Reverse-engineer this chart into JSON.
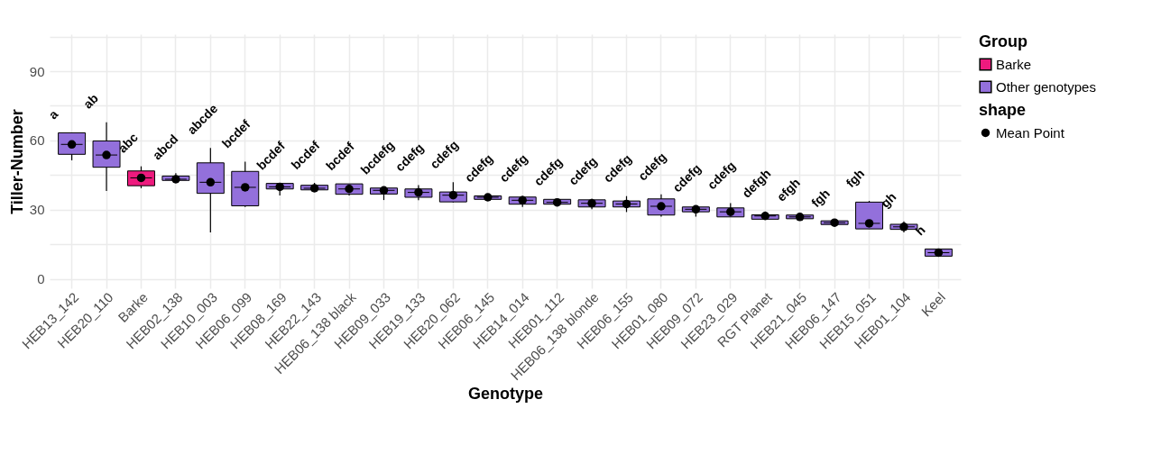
{
  "chart_data": {
    "type": "box",
    "xlabel": "Genotype",
    "ylabel": "Tiller-Number",
    "legend_title": "Group",
    "legend": "right",
    "grid": true,
    "marker": "circle",
    "categories": [
      "HEB13_142",
      "HEB20_110",
      "Barke",
      "HEB02_138",
      "HEB10_003",
      "HEB06_099",
      "HEB08_169",
      "HEB22_143",
      "HEB06_138 black",
      "HEB09_033",
      "HEB19_133",
      "HEB20_062",
      "HEB06_145",
      "HEB14_014",
      "HEB01_112",
      "HEB06_138 blonde",
      "HEB06_155",
      "HEB01_080",
      "HEB09_072",
      "HEB23_029",
      "RGT Planet",
      "HEB21_045",
      "HEB06_147",
      "HEB15_051",
      "HEB01_104",
      "Keel"
    ],
    "ylim": [
      -4,
      106
    ],
    "yticks": [
      0,
      {
        "value": 15,
        "label": null
      },
      30,
      {
        "value": 45,
        "label": null
      },
      60,
      {
        "value": 75,
        "label": null
      },
      90,
      {
        "value": 105,
        "label": null
      }
    ],
    "series": [
      {
        "name": "Barke",
        "color": "#ee1a7e",
        "boxes": [
          null,
          null,
          {
            "low": 39.3,
            "q1": 40.4,
            "median": 43.8,
            "q3": 46.8,
            "high": 48.8
          },
          null,
          null,
          null,
          null,
          null,
          null,
          null,
          null,
          null,
          null,
          null,
          null,
          null,
          null,
          null,
          null,
          null,
          null,
          null,
          null,
          null,
          null,
          null
        ]
      },
      {
        "name": "Other genotypes",
        "color": "#9370db",
        "boxes": [
          {
            "low": 51.4,
            "q1": 54,
            "median": 58.3,
            "q3": 63.3,
            "high": 63.3
          },
          {
            "low": 38.1,
            "q1": 48.4,
            "median": 53.7,
            "q3": 59.8,
            "high": 67.9
          },
          null,
          {
            "low": 42.7,
            "q1": 42.7,
            "median": 43.2,
            "q3": 44.6,
            "high": 45.8
          },
          {
            "low": 20.2,
            "q1": 37.1,
            "median": 41.9,
            "q3": 50.3,
            "high": 56.8
          },
          {
            "low": 31.2,
            "q1": 31.7,
            "median": 39.7,
            "q3": 46.6,
            "high": 50.8
          },
          {
            "low": 36.2,
            "q1": 39,
            "median": 39.9,
            "q3": 41.4,
            "high": 41.4
          },
          {
            "low": 38.2,
            "q1": 38.6,
            "median": 39.3,
            "q3": 40.6,
            "high": 41.6
          },
          {
            "low": 36.2,
            "q1": 36.7,
            "median": 39,
            "q3": 41.2,
            "high": 41.2
          },
          {
            "low": 34.2,
            "q1": 36.8,
            "median": 38.4,
            "q3": 39.4,
            "high": 39.4
          },
          {
            "low": 34.1,
            "q1": 35.4,
            "median": 37.5,
            "q3": 39,
            "high": 40.7
          },
          {
            "low": 33.2,
            "q1": 33.4,
            "median": 36.3,
            "q3": 37.7,
            "high": 41.9
          },
          {
            "low": 34.5,
            "q1": 34.5,
            "median": 35.4,
            "q3": 36,
            "high": 36
          },
          {
            "low": 31.2,
            "q1": 32.4,
            "median": 34.1,
            "q3": 35.5,
            "high": 36
          },
          {
            "low": 31.7,
            "q1": 32.4,
            "median": 33.2,
            "q3": 34.5,
            "high": 34.5
          },
          {
            "low": 30.2,
            "q1": 31.2,
            "median": 32.8,
            "q3": 34.3,
            "high": 34.8
          },
          {
            "low": 29,
            "q1": 31.2,
            "median": 32.5,
            "q3": 33.8,
            "high": 35.9
          },
          {
            "low": 27,
            "q1": 27.7,
            "median": 31.5,
            "q3": 34.7,
            "high": 36.7
          },
          {
            "low": 27,
            "q1": 29.1,
            "median": 30.2,
            "q3": 31.2,
            "high": 31.7
          },
          {
            "low": 26.9,
            "q1": 26.9,
            "median": 29.1,
            "q3": 30.8,
            "high": 32.9
          },
          {
            "low": 25.9,
            "q1": 25.9,
            "median": 27.3,
            "q3": 27.8,
            "high": 29.3
          },
          {
            "low": 26.1,
            "q1": 26.1,
            "median": 26.9,
            "q3": 27.7,
            "high": 27.7
          },
          {
            "low": 23.6,
            "q1": 23.6,
            "median": 24.4,
            "q3": 25.2,
            "high": 25.2
          },
          {
            "low": 21.7,
            "q1": 21.7,
            "median": 24.1,
            "q3": 33.3,
            "high": 33.8
          },
          {
            "low": 20.2,
            "q1": 21.5,
            "median": 22.6,
            "q3": 23.7,
            "high": 25
          },
          {
            "low": 9.9,
            "q1": 9.9,
            "median": 11.4,
            "q3": 13,
            "high": 13
          }
        ]
      },
      {
        "name": "Mean Point",
        "type": "scatter",
        "color": "#000000",
        "x": [
          "HEB13_142",
          "HEB20_110",
          "Barke",
          "HEB02_138",
          "HEB10_003",
          "HEB06_099",
          "HEB08_169",
          "HEB22_143",
          "HEB06_138 black",
          "HEB09_033",
          "HEB19_133",
          "HEB20_062",
          "HEB06_145",
          "HEB14_014",
          "HEB01_112",
          "HEB06_138 blonde",
          "HEB06_155",
          "HEB01_080",
          "HEB09_072",
          "HEB23_029",
          "RGT Planet",
          "HEB21_045",
          "HEB06_147",
          "HEB15_051",
          "HEB01_104",
          "Keel"
        ],
        "values": [
          58.3,
          53.7,
          43.8,
          43.2,
          41.9,
          39.7,
          39.9,
          39.3,
          39,
          38.4,
          37.5,
          36.3,
          35.4,
          34.1,
          33.2,
          32.8,
          32.5,
          31.5,
          30.2,
          29.1,
          27.3,
          26.9,
          24.4,
          24.1,
          22.6,
          11.4
        ]
      }
    ],
    "annotations": [
      "shape",
      "a",
      "ab",
      "abc",
      "abcd",
      "abcde",
      "bcdef",
      "bcdef",
      "bcdef",
      "bcdef",
      "bcdefg",
      "cdefg",
      "cdefg",
      "cdefg",
      "cdefg",
      "cdefg",
      "cdefg",
      "cdefg",
      "cdefg",
      "cdefg",
      "cdefg",
      "defgh",
      "efgh",
      "fgh",
      "fgh",
      "gh",
      "h"
    ]
  }
}
